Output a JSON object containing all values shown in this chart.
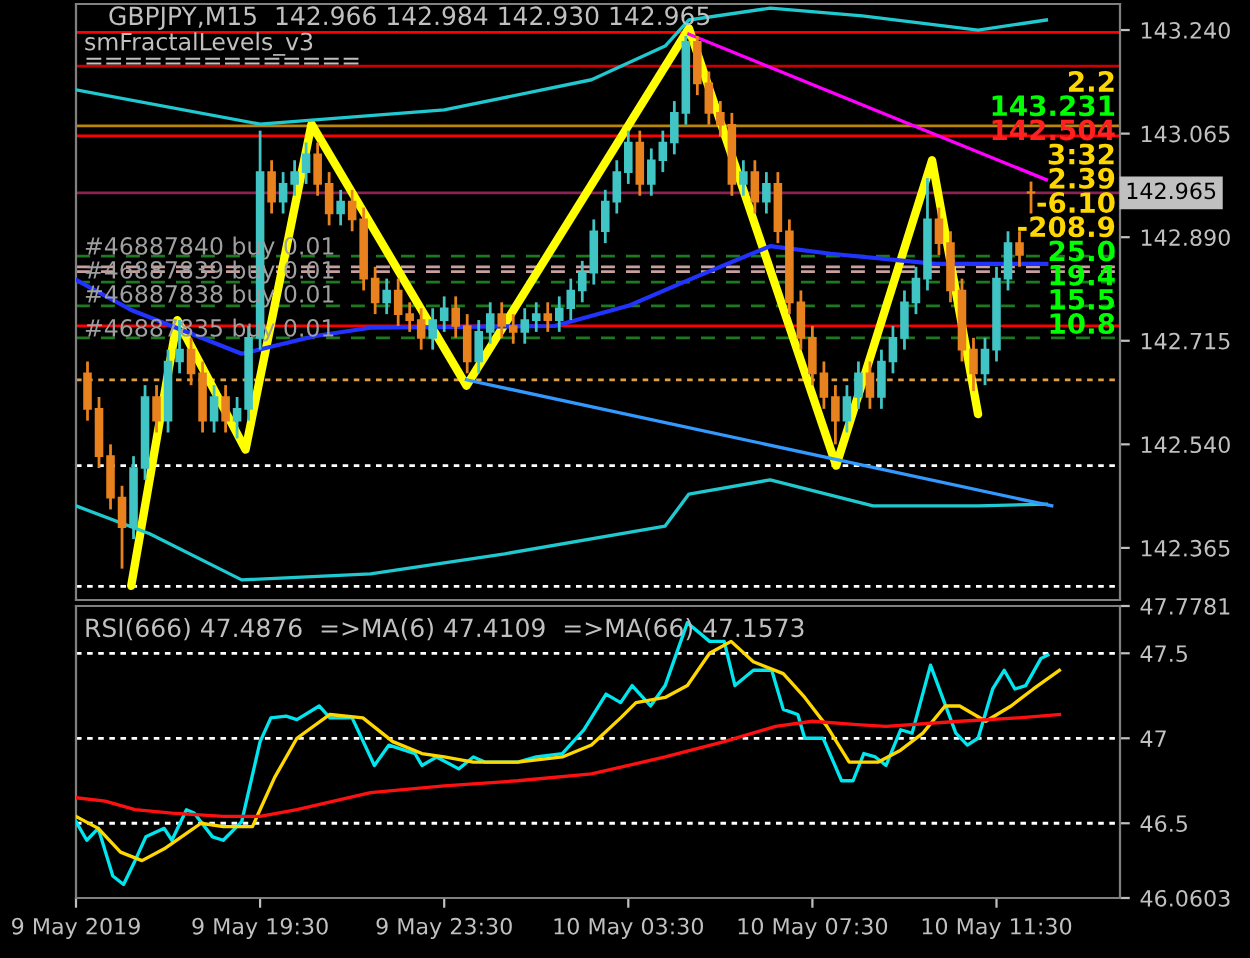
{
  "chart_data": [
    {
      "type": "candlestick",
      "title": "GBPJPY,M15  142.966 142.984 142.930 142.965",
      "annotations": [
        "smFractalLevels_v3",
        "==============",
        "#46887840 buy 0.01",
        "#46887839 buy 0.01",
        "#46887838 buy 0.01",
        "#46887835 buy 0.01",
        "2.2",
        "143.231",
        "142.504",
        "3:32",
        "2.39",
        "-6.10",
        "-208.9",
        "25.0",
        "19.4",
        "15.5",
        "10.8"
      ],
      "x": [
        "2019-05-09T15:45",
        "2019-05-09T16:00",
        "2019-05-09T16:15",
        "2019-05-09T16:30",
        "2019-05-09T16:45",
        "2019-05-09T17:00",
        "2019-05-09T17:15",
        "2019-05-09T17:30",
        "2019-05-09T17:45",
        "2019-05-09T18:00",
        "2019-05-09T18:15",
        "2019-05-09T18:30",
        "2019-05-09T18:45",
        "2019-05-09T19:00",
        "2019-05-09T19:15",
        "2019-05-09T19:30",
        "2019-05-09T19:45",
        "2019-05-09T20:00",
        "2019-05-09T20:15",
        "2019-05-09T20:30",
        "2019-05-09T20:45",
        "2019-05-09T21:00",
        "2019-05-09T21:15",
        "2019-05-09T21:30",
        "2019-05-09T21:45",
        "2019-05-09T22:00",
        "2019-05-09T22:15",
        "2019-05-09T22:30",
        "2019-05-09T22:45",
        "2019-05-09T23:00",
        "2019-05-09T23:15",
        "2019-05-09T23:30",
        "2019-05-09T23:45",
        "2019-05-10T00:00",
        "2019-05-10T00:15",
        "2019-05-10T00:30",
        "2019-05-10T00:45",
        "2019-05-10T01:00",
        "2019-05-10T01:15",
        "2019-05-10T01:30",
        "2019-05-10T01:45",
        "2019-05-10T02:00",
        "2019-05-10T02:15",
        "2019-05-10T02:30",
        "2019-05-10T02:45",
        "2019-05-10T03:00",
        "2019-05-10T03:15",
        "2019-05-10T03:30",
        "2019-05-10T03:45",
        "2019-05-10T04:00",
        "2019-05-10T04:15",
        "2019-05-10T04:30",
        "2019-05-10T04:45",
        "2019-05-10T05:00",
        "2019-05-10T05:15",
        "2019-05-10T05:30",
        "2019-05-10T05:45",
        "2019-05-10T06:00",
        "2019-05-10T06:15",
        "2019-05-10T06:30",
        "2019-05-10T06:45",
        "2019-05-10T07:00",
        "2019-05-10T07:15",
        "2019-05-10T07:30",
        "2019-05-10T07:45",
        "2019-05-10T08:00",
        "2019-05-10T08:15",
        "2019-05-10T08:30",
        "2019-05-10T08:45",
        "2019-05-10T09:00",
        "2019-05-10T09:15",
        "2019-05-10T09:30",
        "2019-05-10T09:45",
        "2019-05-10T10:00",
        "2019-05-10T10:15",
        "2019-05-10T10:30",
        "2019-05-10T10:45",
        "2019-05-10T11:00",
        "2019-05-10T11:15",
        "2019-05-10T11:30",
        "2019-05-10T11:45",
        "2019-05-10T12:00",
        "2019-05-10T12:15"
      ],
      "ohlc": [
        [
          142.66,
          142.68,
          142.58,
          142.6
        ],
        [
          142.6,
          142.62,
          142.5,
          142.52
        ],
        [
          142.52,
          142.54,
          142.43,
          142.45
        ],
        [
          142.45,
          142.47,
          142.33,
          142.4
        ],
        [
          142.4,
          142.52,
          142.38,
          142.5
        ],
        [
          142.5,
          142.64,
          142.48,
          142.62
        ],
        [
          142.62,
          142.64,
          142.56,
          142.58
        ],
        [
          142.58,
          142.7,
          142.56,
          142.68
        ],
        [
          142.68,
          142.75,
          142.66,
          142.7
        ],
        [
          142.7,
          142.72,
          142.64,
          142.66
        ],
        [
          142.66,
          142.68,
          142.56,
          142.58
        ],
        [
          142.58,
          142.64,
          142.56,
          142.62
        ],
        [
          142.62,
          142.64,
          142.56,
          142.58
        ],
        [
          142.58,
          142.62,
          142.55,
          142.6
        ],
        [
          142.6,
          142.74,
          142.58,
          142.72
        ],
        [
          142.72,
          143.07,
          142.7,
          143.0
        ],
        [
          143.0,
          143.02,
          142.93,
          142.95
        ],
        [
          142.95,
          143.0,
          142.93,
          142.98
        ],
        [
          142.98,
          143.02,
          142.96,
          143.0
        ],
        [
          143.0,
          143.05,
          142.98,
          143.03
        ],
        [
          143.03,
          143.05,
          142.96,
          142.98
        ],
        [
          142.98,
          143.0,
          142.91,
          142.93
        ],
        [
          142.93,
          142.97,
          142.91,
          142.95
        ],
        [
          142.95,
          142.97,
          142.9,
          142.92
        ],
        [
          142.92,
          142.94,
          142.8,
          142.82
        ],
        [
          142.82,
          142.84,
          142.76,
          142.78
        ],
        [
          142.78,
          142.82,
          142.76,
          142.8
        ],
        [
          142.8,
          142.82,
          142.74,
          142.76
        ],
        [
          142.76,
          142.78,
          142.73,
          142.75
        ],
        [
          142.75,
          142.77,
          142.7,
          142.72
        ],
        [
          142.72,
          142.77,
          142.7,
          142.75
        ],
        [
          142.75,
          142.79,
          142.73,
          142.77
        ],
        [
          142.77,
          142.79,
          142.72,
          142.74
        ],
        [
          142.74,
          142.76,
          142.66,
          142.68
        ],
        [
          142.68,
          142.75,
          142.66,
          142.73
        ],
        [
          142.73,
          142.78,
          142.71,
          142.76
        ],
        [
          142.76,
          142.78,
          142.72,
          142.74
        ],
        [
          142.74,
          142.76,
          142.71,
          142.73
        ],
        [
          142.73,
          142.77,
          142.71,
          142.75
        ],
        [
          142.75,
          142.78,
          142.73,
          142.76
        ],
        [
          142.76,
          142.78,
          142.73,
          142.75
        ],
        [
          142.75,
          142.79,
          142.73,
          142.77
        ],
        [
          142.77,
          142.82,
          142.75,
          142.8
        ],
        [
          142.8,
          142.85,
          142.78,
          142.83
        ],
        [
          142.83,
          142.92,
          142.81,
          142.9
        ],
        [
          142.9,
          142.97,
          142.88,
          142.95
        ],
        [
          142.95,
          143.02,
          142.93,
          143.0
        ],
        [
          143.0,
          143.07,
          142.98,
          143.05
        ],
        [
          143.05,
          143.07,
          142.96,
          142.98
        ],
        [
          142.98,
          143.04,
          142.96,
          143.02
        ],
        [
          143.02,
          143.07,
          143.0,
          143.05
        ],
        [
          143.05,
          143.12,
          143.03,
          143.1
        ],
        [
          143.1,
          143.23,
          143.08,
          143.22
        ],
        [
          143.22,
          143.23,
          143.13,
          143.15
        ],
        [
          143.15,
          143.17,
          143.08,
          143.1
        ],
        [
          143.1,
          143.12,
          143.06,
          143.08
        ],
        [
          143.08,
          143.1,
          142.96,
          142.98
        ],
        [
          142.98,
          143.02,
          142.96,
          143.0
        ],
        [
          143.0,
          143.02,
          142.93,
          142.95
        ],
        [
          142.95,
          143.0,
          142.93,
          142.98
        ],
        [
          142.98,
          143.0,
          142.88,
          142.9
        ],
        [
          142.9,
          142.92,
          142.76,
          142.78
        ],
        [
          142.78,
          142.8,
          142.7,
          142.72
        ],
        [
          142.72,
          142.74,
          142.64,
          142.66
        ],
        [
          142.66,
          142.68,
          142.6,
          142.62
        ],
        [
          142.62,
          142.64,
          142.54,
          142.58
        ],
        [
          142.58,
          142.64,
          142.56,
          142.62
        ],
        [
          142.62,
          142.68,
          142.6,
          142.66
        ],
        [
          142.66,
          142.68,
          142.6,
          142.62
        ],
        [
          142.62,
          142.7,
          142.6,
          142.68
        ],
        [
          142.68,
          142.74,
          142.66,
          142.72
        ],
        [
          142.72,
          142.8,
          142.7,
          142.78
        ],
        [
          142.78,
          142.84,
          142.76,
          142.82
        ],
        [
          142.82,
          142.99,
          142.8,
          142.92
        ],
        [
          142.92,
          142.94,
          142.86,
          142.88
        ],
        [
          142.88,
          142.9,
          142.78,
          142.8
        ],
        [
          142.8,
          142.82,
          142.68,
          142.7
        ],
        [
          142.7,
          142.72,
          142.63,
          142.66
        ],
        [
          142.66,
          142.72,
          142.64,
          142.7
        ],
        [
          142.7,
          142.84,
          142.68,
          142.82
        ],
        [
          142.82,
          142.9,
          142.8,
          142.88
        ],
        [
          142.88,
          142.9,
          142.84,
          142.86
        ],
        [
          142.966,
          142.984,
          142.93,
          142.965
        ]
      ],
      "colors": [
        "#e8821e",
        "#e8821e",
        "#e8821e",
        "#e8821e",
        "#40c4c4",
        "#40c4c4",
        "#e8821e",
        "#40c4c4",
        "#40c4c4",
        "#e8821e",
        "#e8821e",
        "#40c4c4",
        "#e8821e",
        "#40c4c4",
        "#40c4c4",
        "#40c4c4",
        "#e8821e",
        "#40c4c4",
        "#40c4c4",
        "#40c4c4",
        "#e8821e",
        "#e8821e",
        "#40c4c4",
        "#e8821e",
        "#e8821e",
        "#e8821e",
        "#40c4c4",
        "#e8821e",
        "#e8821e",
        "#e8821e",
        "#40c4c4",
        "#40c4c4",
        "#e8821e",
        "#e8821e",
        "#40c4c4",
        "#40c4c4",
        "#e8821e",
        "#e8821e",
        "#40c4c4",
        "#40c4c4",
        "#e8821e",
        "#40c4c4",
        "#40c4c4",
        "#40c4c4",
        "#40c4c4",
        "#40c4c4",
        "#40c4c4",
        "#40c4c4",
        "#e8821e",
        "#40c4c4",
        "#40c4c4",
        "#40c4c4",
        "#40c4c4",
        "#e8821e",
        "#e8821e",
        "#e8821e",
        "#e8821e",
        "#40c4c4",
        "#e8821e",
        "#40c4c4",
        "#e8821e",
        "#e8821e",
        "#e8821e",
        "#e8821e",
        "#e8821e",
        "#e8821e",
        "#40c4c4",
        "#40c4c4",
        "#e8821e",
        "#40c4c4",
        "#40c4c4",
        "#40c4c4",
        "#40c4c4",
        "#40c4c4",
        "#e8821e",
        "#e8821e",
        "#e8821e",
        "#e8821e",
        "#40c4c4",
        "#40c4c4",
        "#40c4c4",
        "#e8821e",
        "#e8821e"
      ],
      "series": [
        {
          "type": "line",
          "color": "#2233ff",
          "x": [
            "2019-05-09T15:30",
            "2019-05-09T16:42",
            "2019-05-09T19:06",
            "2019-05-09T20:42",
            "2019-05-09T21:54",
            "2019-05-10T01:54",
            "2019-05-10T03:30",
            "2019-05-10T04:49",
            "2019-05-10T06:35",
            "2019-05-10T07:54",
            "2019-05-10T10:11",
            "2019-05-10T12:35"
          ],
          "values": [
            142.818,
            142.767,
            142.693,
            142.723,
            142.737,
            142.74,
            142.774,
            142.818,
            142.875,
            142.862,
            142.845,
            142.845
          ]
        },
        {
          "type": "line",
          "color": "#20c8d0",
          "x": [
            "2019-05-09T15:30",
            "2019-05-09T19:30",
            "2019-05-09T23:30",
            "2019-05-10T02:42",
            "2019-05-10T04:18",
            "2019-05-10T04:49",
            "2019-05-10T06:35",
            "2019-05-10T08:35",
            "2019-05-10T11:06",
            "2019-05-10T12:35"
          ],
          "values": [
            143.139,
            143.081,
            143.105,
            143.156,
            143.213,
            143.257,
            143.277,
            143.264,
            143.24,
            143.257
          ]
        },
        {
          "type": "line",
          "color": "#20c8d0",
          "x": [
            "2019-05-09T15:30",
            "2019-05-09T17:06",
            "2019-05-09T19:06",
            "2019-05-09T21:54",
            "2019-05-10T00:49",
            "2019-05-10T04:18",
            "2019-05-10T04:49",
            "2019-05-10T06:35",
            "2019-05-10T08:49",
            "2019-05-10T11:06",
            "2019-05-10T12:35"
          ],
          "values": [
            142.436,
            142.389,
            142.311,
            142.321,
            142.355,
            142.402,
            142.456,
            142.48,
            142.436,
            142.436,
            142.439
          ]
        },
        {
          "type": "line",
          "color": "#3399ff",
          "x": [
            "2019-05-09T23:59",
            "2019-05-10T12:42"
          ],
          "values": [
            142.649,
            142.436
          ]
        },
        {
          "type": "line",
          "color": "#ff00ff",
          "x": [
            "2019-05-10T04:49",
            "2019-05-10T12:35"
          ],
          "values": [
            143.233,
            142.987
          ]
        },
        {
          "type": "line",
          "color": "#ffff00",
          "x": [
            "2019-05-09T16:42",
            "2019-05-09T17:42",
            "2019-05-09T19:11",
            "2019-05-09T20:37",
            "2019-05-09T23:59",
            "2019-05-10T04:49",
            "2019-05-10T08:01",
            "2019-05-10T10:06",
            "2019-05-10T11:06"
          ],
          "values": [
            142.301,
            142.75,
            142.531,
            143.081,
            142.639,
            143.243,
            142.504,
            143.02,
            142.591
          ]
        }
      ],
      "ref_lines": [
        {
          "axis": "y",
          "value": 143.236,
          "color": "#ff0000",
          "line_style": "solid"
        },
        {
          "axis": "y",
          "value": 143.179,
          "color": "#cc0000",
          "line_style": "solid"
        },
        {
          "axis": "y",
          "value": 143.078,
          "color": "#b8860b",
          "line_style": "solid"
        },
        {
          "axis": "y",
          "value": 143.061,
          "color": "#ff0000",
          "line_style": "solid"
        },
        {
          "axis": "y",
          "value": 142.965,
          "color": "#8b2252",
          "line_style": "solid",
          "label": "142.965"
        },
        {
          "axis": "y",
          "value": 142.858,
          "color": "#1e7a1e",
          "line_style": "dashed"
        },
        {
          "axis": "y",
          "value": 142.84,
          "color": "#c8a0a0",
          "line_style": "dashed"
        },
        {
          "axis": "y",
          "value": 142.832,
          "color": "#c8a0a0",
          "line_style": "dashed"
        },
        {
          "axis": "y",
          "value": 142.814,
          "color": "#1e7a1e",
          "line_style": "dashed"
        },
        {
          "axis": "y",
          "value": 142.774,
          "color": "#1e7a1e",
          "line_style": "dashed"
        },
        {
          "axis": "y",
          "value": 142.74,
          "color": "#ff0000",
          "line_style": "solid"
        },
        {
          "axis": "y",
          "value": 142.72,
          "color": "#1e7a1e",
          "line_style": "dashed"
        },
        {
          "axis": "y",
          "value": 142.649,
          "color": "#e0a040",
          "line_style": "dotted"
        },
        {
          "axis": "y",
          "value": 142.504,
          "color": "#ffffff",
          "line_style": "dotted"
        },
        {
          "axis": "y",
          "value": 142.3,
          "color": "#ffffff",
          "line_style": "dotted"
        }
      ],
      "xlim": [
        "2019-05-09T15:30",
        "2019-05-10T14:11"
      ],
      "ylim": [
        142.277,
        143.284
      ],
      "yticks": [
        142.365,
        {
          "value": 142.54,
          "label": "142.540"
        },
        142.715,
        {
          "value": 142.89,
          "label": "142.890"
        },
        143.065,
        {
          "value": 143.24,
          "label": "143.240"
        }
      ],
      "tick_labels": "y",
      "grid": false
    },
    {
      "type": "line",
      "title": "RSI(666) 47.4876  =>MA(6) 47.4109  =>MA(66) 47.1573",
      "series": [
        {
          "color": "#00e5ee",
          "x": [
            "2019-05-09T15:30",
            "2019-05-09T15:44",
            "2019-05-09T15:59",
            "2019-05-09T16:18",
            "2019-05-09T16:32",
            "2019-05-09T16:47",
            "2019-05-09T17:01",
            "2019-05-09T17:25",
            "2019-05-09T17:35",
            "2019-05-09T17:54",
            "2019-05-09T18:04",
            "2019-05-09T18:28",
            "2019-05-09T18:42",
            "2019-05-09T19:06",
            "2019-05-09T19:30",
            "2019-05-09T19:44",
            "2019-05-09T20:04",
            "2019-05-09T20:18",
            "2019-05-09T20:47",
            "2019-05-09T21:01",
            "2019-05-09T21:30",
            "2019-05-09T21:59",
            "2019-05-09T22:18",
            "2019-05-09T22:52",
            "2019-05-09T23:01",
            "2019-05-09T23:20",
            "2019-05-09T23:49",
            "2019-05-10T00:08",
            "2019-05-10T00:23",
            "2019-05-10T01:06",
            "2019-05-10T01:30",
            "2019-05-10T02:04",
            "2019-05-10T02:32",
            "2019-05-10T03:01",
            "2019-05-10T03:20",
            "2019-05-10T03:35",
            "2019-05-10T03:59",
            "2019-05-10T04:18",
            "2019-05-10T04:47",
            "2019-05-10T05:16",
            "2019-05-10T05:35",
            "2019-05-10T05:49",
            "2019-05-10T06:13",
            "2019-05-10T06:37",
            "2019-05-10T06:52",
            "2019-05-10T07:11",
            "2019-05-10T07:20",
            "2019-05-10T07:44",
            "2019-05-10T08:08",
            "2019-05-10T08:23",
            "2019-05-10T08:37",
            "2019-05-10T08:52",
            "2019-05-10T09:06",
            "2019-05-10T09:25",
            "2019-05-10T09:40",
            "2019-05-10T10:04",
            "2019-05-10T10:18",
            "2019-05-10T10:37",
            "2019-05-10T10:52",
            "2019-05-10T11:06",
            "2019-05-10T11:25",
            "2019-05-10T11:40",
            "2019-05-10T11:54",
            "2019-05-10T12:08",
            "2019-05-10T12:28",
            "2019-05-10T12:37"
          ],
          "values": [
            46.51,
            46.4,
            46.47,
            46.19,
            46.14,
            46.28,
            46.42,
            46.47,
            46.4,
            46.58,
            46.56,
            46.42,
            46.4,
            46.51,
            46.98,
            47.12,
            47.13,
            47.11,
            47.19,
            47.12,
            47.12,
            46.84,
            46.96,
            46.91,
            46.84,
            46.89,
            46.82,
            46.89,
            46.86,
            46.86,
            46.89,
            46.91,
            47.05,
            47.26,
            47.21,
            47.31,
            47.19,
            47.31,
            47.68,
            47.57,
            47.57,
            47.31,
            47.4,
            47.4,
            47.17,
            47.14,
            47.0,
            47.0,
            46.75,
            46.75,
            46.91,
            46.89,
            46.84,
            47.05,
            47.03,
            47.43,
            47.26,
            47.03,
            46.96,
            47.0,
            47.29,
            47.4,
            47.29,
            47.31,
            47.47,
            47.49
          ]
        },
        {
          "color": "#ffd700",
          "x": [
            "2019-05-09T15:30",
            "2019-05-09T15:59",
            "2019-05-09T16:28",
            "2019-05-09T16:56",
            "2019-05-09T17:25",
            "2019-05-09T17:54",
            "2019-05-09T18:13",
            "2019-05-09T18:42",
            "2019-05-09T19:20",
            "2019-05-09T19:49",
            "2019-05-09T20:18",
            "2019-05-09T21:01",
            "2019-05-09T21:44",
            "2019-05-09T22:23",
            "2019-05-09T23:01",
            "2019-05-09T23:30",
            "2019-05-10T00:08",
            "2019-05-10T01:06",
            "2019-05-10T02:04",
            "2019-05-10T02:42",
            "2019-05-10T03:20",
            "2019-05-10T03:40",
            "2019-05-10T04:18",
            "2019-05-10T04:47",
            "2019-05-10T05:16",
            "2019-05-10T05:44",
            "2019-05-10T06:13",
            "2019-05-10T06:52",
            "2019-05-10T07:20",
            "2019-05-10T07:49",
            "2019-05-10T08:18",
            "2019-05-10T08:56",
            "2019-05-10T09:25",
            "2019-05-10T09:54",
            "2019-05-10T10:23",
            "2019-05-10T10:42",
            "2019-05-10T11:16",
            "2019-05-10T11:49",
            "2019-05-10T12:18",
            "2019-05-10T12:52"
          ],
          "values": [
            46.54,
            46.47,
            46.33,
            46.28,
            46.35,
            46.44,
            46.5,
            46.48,
            46.48,
            46.77,
            47.0,
            47.14,
            47.12,
            46.98,
            46.91,
            46.89,
            46.86,
            46.86,
            46.89,
            46.96,
            47.12,
            47.21,
            47.24,
            47.31,
            47.5,
            47.57,
            47.45,
            47.38,
            47.24,
            47.07,
            46.86,
            46.86,
            46.93,
            47.03,
            47.19,
            47.19,
            47.1,
            47.19,
            47.29,
            47.4
          ]
        },
        {
          "color": "#ff1010",
          "x": [
            "2019-05-09T15:30",
            "2019-05-09T16:08",
            "2019-05-09T16:47",
            "2019-05-09T17:35",
            "2019-05-09T18:42",
            "2019-05-09T19:30",
            "2019-05-09T20:18",
            "2019-05-09T21:54",
            "2019-05-09T23:30",
            "2019-05-10T01:06",
            "2019-05-10T02:42",
            "2019-05-10T04:18",
            "2019-05-10T05:35",
            "2019-05-10T06:42",
            "2019-05-10T07:30",
            "2019-05-10T08:28",
            "2019-05-10T09:06",
            "2019-05-10T10:42",
            "2019-05-10T11:59",
            "2019-05-10T12:52"
          ],
          "values": [
            46.65,
            46.63,
            46.58,
            46.56,
            46.54,
            46.54,
            46.58,
            46.68,
            46.72,
            46.75,
            46.79,
            46.89,
            46.98,
            47.07,
            47.1,
            47.08,
            47.07,
            47.1,
            47.12,
            47.14
          ]
        }
      ],
      "ref_lines": [
        {
          "axis": "y",
          "value": 47.5,
          "color": "#ffffff",
          "line_style": "dotted"
        },
        {
          "axis": "y",
          "value": 47,
          "color": "#ffffff",
          "line_style": "dotted"
        },
        {
          "axis": "y",
          "value": 46.5,
          "color": "#ffffff",
          "line_style": "dotted"
        }
      ],
      "xlim": [
        "2019-05-09T15:30",
        "2019-05-10T14:11"
      ],
      "ylim": [
        46.0603,
        47.7781
      ],
      "xticks": [
        {
          "value": "2019-05-09T15:30",
          "label": "9 May 2019"
        },
        {
          "value": "2019-05-09T19:30",
          "label": "9 May 19:30"
        },
        {
          "value": "2019-05-09T23:30",
          "label": "9 May 23:30"
        },
        {
          "value": "2019-05-10T03:30",
          "label": "10 May 03:30"
        },
        {
          "value": "2019-05-10T07:30",
          "label": "10 May 07:30"
        },
        {
          "value": "2019-05-10T11:30",
          "label": "10 May 11:30"
        }
      ],
      "yticks": [
        46.0603,
        46.5,
        47,
        47.5,
        47.7781
      ],
      "grid": false
    }
  ]
}
